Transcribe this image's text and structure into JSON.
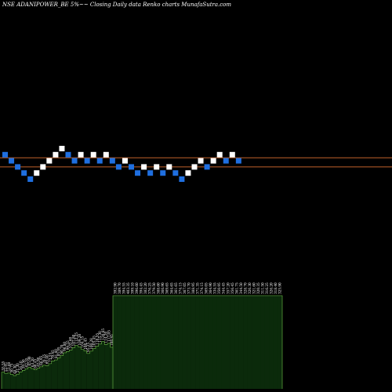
{
  "header": {
    "title": "NSE ADANIPOWER_BE 5%~~ Closing Daily data  Renko  charts MunafaSutra.com"
  },
  "colors": {
    "background": "#000000",
    "up_brick": "#ffffff",
    "down_brick": "#1f6fe0",
    "reference_line": "#c0622a",
    "volume_fill": "#0b2a0b",
    "volume_edge": "#6fbf4a"
  },
  "chart_data": [
    {
      "type": "renko",
      "title": "NSE ADANIPOWER_BE 5%~~ Closing Daily data  Renko  charts MunafaSutra.com",
      "brick_percent": 5,
      "brick_levels": [
        6,
        5,
        4,
        3,
        2,
        3,
        4,
        5,
        6,
        7,
        6,
        5,
        6,
        5,
        6,
        5,
        6,
        5,
        4,
        5,
        4,
        3,
        4,
        3,
        4,
        3,
        4,
        3,
        2,
        3,
        4,
        5,
        4,
        5,
        6,
        5,
        6,
        5
      ],
      "directions": [
        "down",
        "down",
        "down",
        "down",
        "down",
        "up",
        "up",
        "up",
        "up",
        "up",
        "down",
        "down",
        "up",
        "down",
        "up",
        "down",
        "up",
        "down",
        "down",
        "up",
        "down",
        "down",
        "up",
        "down",
        "up",
        "down",
        "up",
        "down",
        "down",
        "up",
        "up",
        "up",
        "down",
        "up",
        "up",
        "down",
        "up",
        "down"
      ],
      "reference_lines": [
        5.5,
        4.0
      ],
      "grid": false
    },
    {
      "type": "bar",
      "title": "",
      "values": [
        55.55,
        52.95,
        53.6,
        50.75,
        48.3,
        51.3,
        56.1,
        59.5,
        62.55,
        65.9,
        63.2,
        60.45,
        63.9,
        66.95,
        70.35,
        69.4,
        73.55,
        79.45,
        81.6,
        85.95,
        90.7,
        96.8,
        99.55,
        102.6,
        107.8,
        112.25,
        109.2,
        104.15,
        100.45,
        95.25,
        100.28,
        105.45,
        110.55,
        115.3,
        120.65,
        114.2,
        117.05,
        108.45
      ],
      "labels": [
        "55.55",
        "52.95",
        "53.60",
        "50.75",
        "48.30",
        "51.30",
        "56.10",
        "59.50",
        "62.55",
        "65.90",
        "63.20",
        "60.45",
        "63.90",
        "66.95",
        "70.35",
        "69.40",
        "73.55",
        "79.45",
        "81.60",
        "85.95",
        "90.70",
        "96.80",
        "99.55",
        "102.60",
        "107.80",
        "112.25",
        "109.20",
        "104.15",
        "100.45",
        "95.25",
        "100.28",
        "105.45",
        "110.55",
        "115.30",
        "120.65",
        "114.20",
        "117.05",
        "108.45"
      ]
    },
    {
      "type": "bar",
      "title": "",
      "values": [
        392.9,
        389.7,
        394.55,
        403.35,
        399.1,
        396.6,
        394.45,
        382.2,
        376.25,
        379.5,
        388.6,
        366.9,
        369.65,
        364.65,
        361.65,
        374.15,
        367.05,
        373.7,
        388.95,
        371.35,
        374.15,
        369.05,
        364.9,
        334.55,
        350.95,
        344.45,
        357.2,
        356.45,
        361.75,
        344.5,
        328.7,
        326.3,
        321.6,
        320.35,
        311.5,
        316.25,
        326.2,
        318.4,
        325.9
      ],
      "labels": [
        "392.90",
        "389.70",
        "394.55",
        "403.35",
        "399.10",
        "396.60",
        "394.45",
        "382.20",
        "376.25",
        "379.50",
        "388.60",
        "366.90",
        "369.65",
        "364.65",
        "361.65",
        "374.15",
        "367.05",
        "373.70",
        "388.95",
        "371.35",
        "374.15",
        "369.05",
        "364.90",
        "334.55",
        "350.95",
        "344.45",
        "357.20",
        "356.45",
        "361.75",
        "344.50",
        "328.70",
        "326.30",
        "321.60",
        "320.35",
        "311.50",
        "316.25",
        "326.20",
        "318.40",
        "325.90"
      ]
    }
  ]
}
